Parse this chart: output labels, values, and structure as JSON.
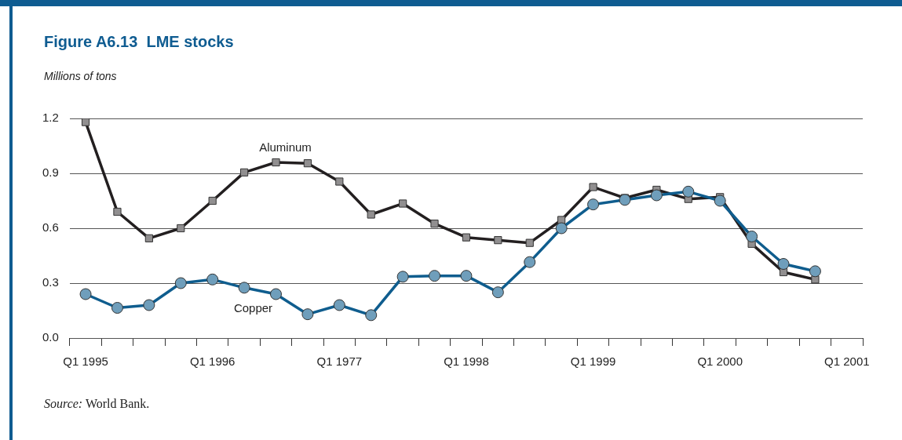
{
  "chart_data": {
    "type": "line",
    "title": "Figure A6.13  LME stocks",
    "ylabel": "Millions of tons",
    "categories": [
      "Q1 1995",
      null,
      null,
      null,
      "Q1 1996",
      null,
      null,
      null,
      "Q1 1977",
      null,
      null,
      null,
      "Q1 1998",
      null,
      null,
      null,
      "Q1 1999",
      null,
      null,
      null,
      "Q1 2000",
      null,
      null,
      null,
      "Q1 2001"
    ],
    "series": [
      {
        "name": "Aluminum",
        "color": "#231f20",
        "marker": "square",
        "values": [
          1.18,
          0.69,
          0.545,
          0.6,
          0.75,
          0.905,
          0.96,
          0.955,
          0.855,
          0.675,
          0.735,
          0.625,
          0.55,
          0.535,
          0.52,
          0.645,
          0.825,
          0.765,
          0.81,
          0.76,
          0.77,
          0.515,
          0.36,
          0.32,
          null
        ]
      },
      {
        "name": "Copper",
        "color": "#0f5d8e",
        "marker": "circle",
        "values": [
          0.24,
          0.165,
          0.18,
          0.3,
          0.32,
          0.275,
          0.24,
          0.13,
          0.18,
          0.125,
          0.335,
          0.34,
          0.34,
          0.25,
          0.415,
          0.6,
          0.73,
          0.755,
          0.78,
          0.8,
          0.75,
          0.555,
          0.405,
          0.365,
          null
        ]
      }
    ],
    "ylim": [
      0,
      1.2
    ],
    "yticks": [
      {
        "value": 0,
        "label": "0.0"
      },
      {
        "value": 0.3,
        "label": "0.3"
      },
      {
        "value": 0.6,
        "label": "0.6"
      },
      {
        "value": 0.9,
        "label": "0.9"
      },
      {
        "value": 1.2,
        "label": "1.2"
      }
    ],
    "grid": "y",
    "legend": false,
    "annotations": [
      "Source: World Bank."
    ]
  }
}
